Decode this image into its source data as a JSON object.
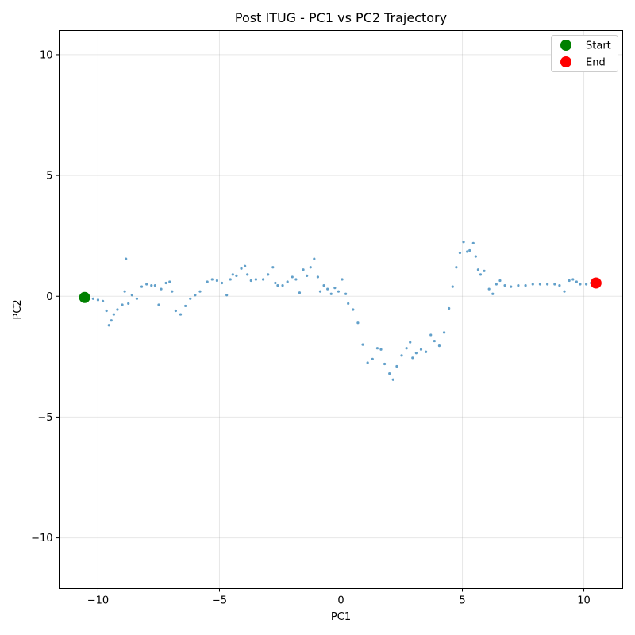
{
  "chart_data": {
    "type": "scatter",
    "title": "Post ITUG - PC1 vs PC2 Trajectory",
    "xlabel": "PC1",
    "ylabel": "PC2",
    "xlim": [
      -11.6,
      11.6
    ],
    "ylim": [
      -12.1,
      11.0
    ],
    "xticks": [
      -10,
      -5,
      0,
      5,
      10
    ],
    "yticks": [
      -10,
      -5,
      0,
      5,
      10
    ],
    "xtick_labels": [
      "−10",
      "−5",
      "0",
      "5",
      "10"
    ],
    "ytick_labels": [
      "−10",
      "−5",
      "0",
      "5",
      "10"
    ],
    "grid": true,
    "legend_position": "top-right",
    "colors": {
      "trajectory": "#1f77b4",
      "start": "#008000",
      "end": "#ff0000"
    },
    "series": [
      {
        "name": "",
        "role": "trajectory",
        "x": [
          -10.6,
          -10.2,
          -10.0,
          -9.8,
          -9.65,
          -9.55,
          -9.45,
          -9.35,
          -9.2,
          -9.0,
          -8.9,
          -8.85,
          -8.75,
          -8.6,
          -8.4,
          -8.2,
          -8.0,
          -7.8,
          -7.65,
          -7.5,
          -7.4,
          -7.2,
          -7.05,
          -6.95,
          -6.8,
          -6.6,
          -6.4,
          -6.2,
          -6.0,
          -5.8,
          -5.5,
          -5.3,
          -5.1,
          -4.9,
          -4.7,
          -4.55,
          -4.45,
          -4.3,
          -4.1,
          -3.95,
          -3.85,
          -3.7,
          -3.5,
          -3.2,
          -3.0,
          -2.8,
          -2.7,
          -2.6,
          -2.4,
          -2.2,
          -2.0,
          -1.85,
          -1.7,
          -1.55,
          -1.4,
          -1.25,
          -1.1,
          -0.95,
          -0.85,
          -0.7,
          -0.55,
          -0.4,
          -0.25,
          -0.1,
          0.05,
          0.2,
          0.3,
          0.5,
          0.7,
          0.9,
          1.1,
          1.3,
          1.5,
          1.65,
          1.8,
          2.0,
          2.15,
          2.3,
          2.5,
          2.7,
          2.85,
          2.95,
          3.1,
          3.3,
          3.5,
          3.7,
          3.85,
          4.05,
          4.25,
          4.45,
          4.6,
          4.75,
          4.9,
          5.05,
          5.2,
          5.3,
          5.45,
          5.55,
          5.65,
          5.75,
          5.9,
          6.1,
          6.25,
          6.4,
          6.55,
          6.75,
          7.0,
          7.3,
          7.6,
          7.9,
          8.2,
          8.5,
          8.8,
          9.0,
          9.2,
          9.4,
          9.55,
          9.7,
          9.85,
          10.1,
          10.3,
          10.5
        ],
        "y": [
          -0.05,
          -0.1,
          -0.15,
          -0.2,
          -0.6,
          -1.2,
          -1.0,
          -0.75,
          -0.55,
          -0.35,
          0.2,
          1.55,
          -0.3,
          0.05,
          -0.1,
          0.4,
          0.5,
          0.45,
          0.45,
          -0.35,
          0.3,
          0.55,
          0.6,
          0.2,
          -0.6,
          -0.75,
          -0.4,
          -0.1,
          0.05,
          0.2,
          0.6,
          0.7,
          0.65,
          0.55,
          0.05,
          0.7,
          0.9,
          0.85,
          1.15,
          1.25,
          0.9,
          0.65,
          0.7,
          0.7,
          0.9,
          1.2,
          0.55,
          0.45,
          0.45,
          0.6,
          0.8,
          0.7,
          0.15,
          1.1,
          0.85,
          1.2,
          1.55,
          0.8,
          0.2,
          0.45,
          0.3,
          0.1,
          0.35,
          0.2,
          0.7,
          0.1,
          -0.3,
          -0.55,
          -1.1,
          -2.0,
          -2.75,
          -2.6,
          -2.15,
          -2.2,
          -2.8,
          -3.2,
          -3.45,
          -2.9,
          -2.45,
          -2.15,
          -1.9,
          -2.55,
          -2.35,
          -2.2,
          -2.3,
          -1.6,
          -1.85,
          -2.05,
          -1.5,
          -0.5,
          0.4,
          1.2,
          1.8,
          2.25,
          1.85,
          1.9,
          2.2,
          1.65,
          1.1,
          0.9,
          1.05,
          0.3,
          0.1,
          0.5,
          0.65,
          0.45,
          0.4,
          0.45,
          0.45,
          0.5,
          0.5,
          0.5,
          0.5,
          0.45,
          0.2,
          0.65,
          0.7,
          0.6,
          0.5,
          0.5,
          0.55,
          0.55
        ]
      }
    ],
    "markers": [
      {
        "name": "Start",
        "x": -10.55,
        "y": -0.05,
        "color": "#008000"
      },
      {
        "name": "End",
        "x": 10.5,
        "y": 0.55,
        "color": "#ff0000"
      }
    ]
  }
}
